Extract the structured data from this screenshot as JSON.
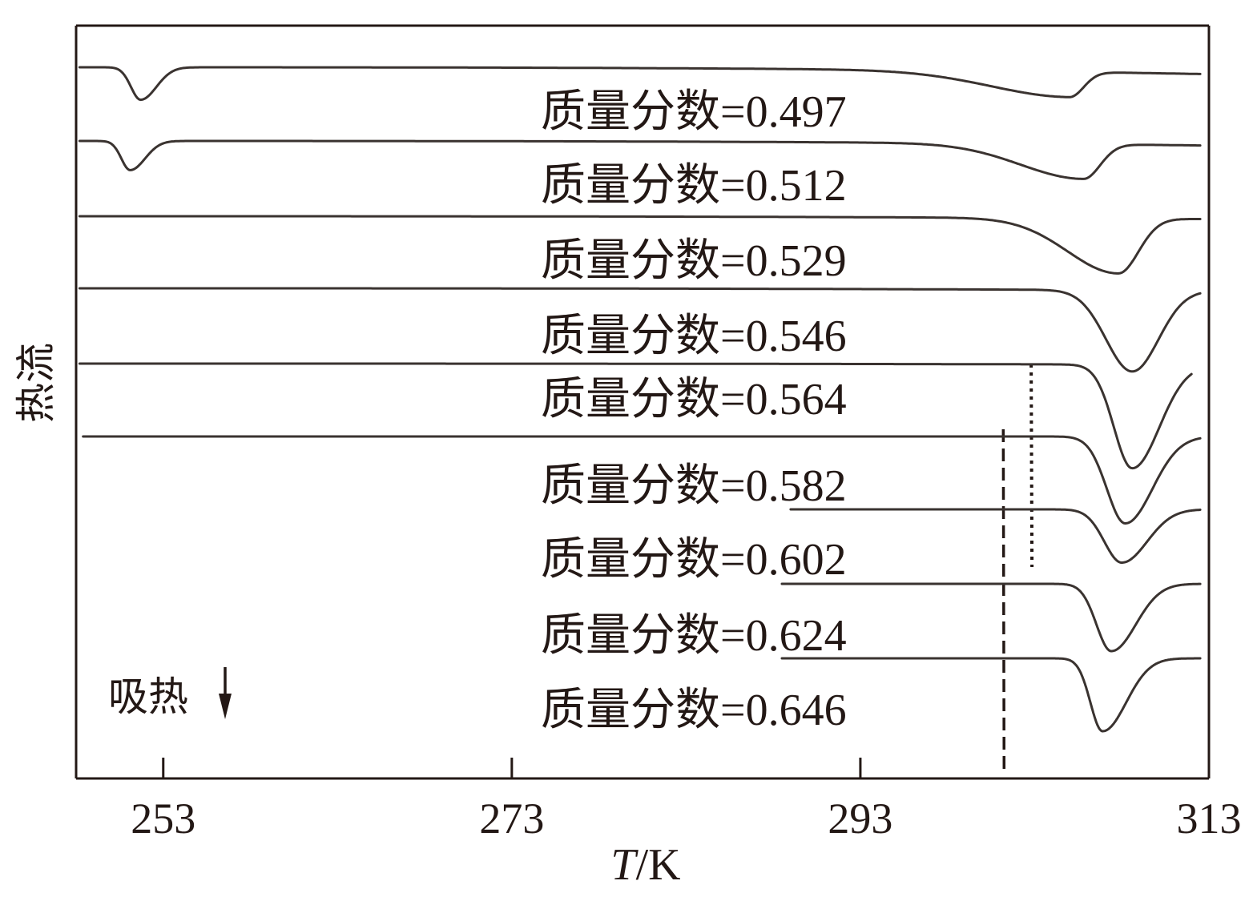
{
  "chart_data": {
    "type": "line",
    "xlabel_italic": "T",
    "xlabel_unit": "/K",
    "ylabel": "热流",
    "xlim": [
      248,
      313
    ],
    "xticks": [
      253,
      273,
      293,
      313
    ],
    "xtick_labels": [
      "253",
      "273",
      "293",
      "313"
    ],
    "annotation": "吸热",
    "annotation_icon": "arrow-down-icon",
    "line_color": "#3a3330",
    "series": [
      {
        "label": "质量分数=0.497",
        "x_start": 248.2,
        "x_end": 312.5,
        "trend_start": 0.0,
        "trend_end": -0.12,
        "peaks": [
          {
            "center": 251.7,
            "depth": 0.58,
            "wl": 0.55,
            "wr": 0.9
          },
          {
            "center": 305.0,
            "depth": 0.45,
            "wl": 4.5,
            "wr": 0.8
          }
        ]
      },
      {
        "label": "质量分数=0.512",
        "x_start": 248.2,
        "x_end": 312.5,
        "trend_start": 0.0,
        "trend_end": -0.08,
        "peaks": [
          {
            "center": 251.1,
            "depth": 0.52,
            "wl": 0.5,
            "wr": 0.85
          },
          {
            "center": 305.8,
            "depth": 0.62,
            "wl": 3.6,
            "wr": 0.95
          }
        ]
      },
      {
        "label": "质量分数=0.529",
        "x_start": 248.2,
        "x_end": 312.5,
        "trend_start": 0.0,
        "trend_end": -0.05,
        "peaks": [
          {
            "center": 307.8,
            "depth": 0.98,
            "wl": 2.9,
            "wr": 1.15
          }
        ]
      },
      {
        "label": "质量分数=0.546",
        "x_start": 248.2,
        "x_end": 312.5,
        "trend_start": 0.0,
        "trend_end": -0.04,
        "peaks": [
          {
            "center": 308.6,
            "depth": 1.45,
            "wl": 1.5,
            "wr": 1.5
          }
        ]
      },
      {
        "label": "质量分数=0.564",
        "x_start": 248.2,
        "x_end": 312.0,
        "trend_start": 0.0,
        "trend_end": -0.02,
        "peaks": [
          {
            "center": 308.6,
            "depth": 1.85,
            "wl": 1.05,
            "wr": 1.55
          }
        ]
      },
      {
        "label": "质量分数=0.582",
        "x_start": 248.4,
        "x_end": 312.5,
        "trend_start": 0.0,
        "trend_end": 0.0,
        "peaks": [
          {
            "center": 308.2,
            "depth": 1.55,
            "wl": 1.05,
            "wr": 1.55
          }
        ]
      },
      {
        "label": "质量分数=0.602",
        "x_start": 289.0,
        "x_end": 312.5,
        "trend_start": 0.0,
        "trend_end": 0.0,
        "peaks": [
          {
            "center": 308.0,
            "depth": 0.95,
            "wl": 1.0,
            "wr": 1.45
          }
        ]
      },
      {
        "label": "质量分数=0.624",
        "x_start": 288.5,
        "x_end": 312.5,
        "trend_start": 0.0,
        "trend_end": 0.0,
        "peaks": [
          {
            "center": 307.4,
            "depth": 1.2,
            "wl": 0.85,
            "wr": 1.4
          }
        ]
      },
      {
        "label": "质量分数=0.646",
        "x_start": 288.5,
        "x_end": 312.5,
        "trend_start": 0.0,
        "trend_end": 0.0,
        "peaks": [
          {
            "center": 306.9,
            "depth": 1.3,
            "wl": 0.7,
            "wr": 1.35
          }
        ]
      }
    ],
    "guide_lines": [
      {
        "style": "dashed",
        "x": 301.2
      },
      {
        "style": "dotted",
        "x": 302.8
      }
    ]
  }
}
